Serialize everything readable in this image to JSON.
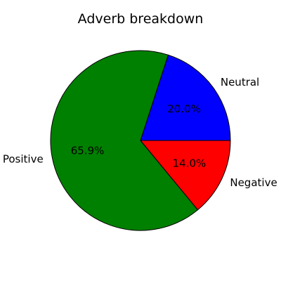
{
  "chart_data": {
    "type": "pie",
    "title": "Adverb breakdown",
    "slices": [
      {
        "label": "Neutral",
        "value": 20.0,
        "pct_label": "20.0%",
        "color": "#0000ff"
      },
      {
        "label": "Positive",
        "value": 65.9,
        "pct_label": "65.9%",
        "color": "#008000"
      },
      {
        "label": "Negative",
        "value": 14.0,
        "pct_label": "14.0%",
        "color": "#ff0000"
      }
    ],
    "start_angle_deg": 0,
    "direction": "counterclockwise",
    "edge_color": "#000000"
  }
}
